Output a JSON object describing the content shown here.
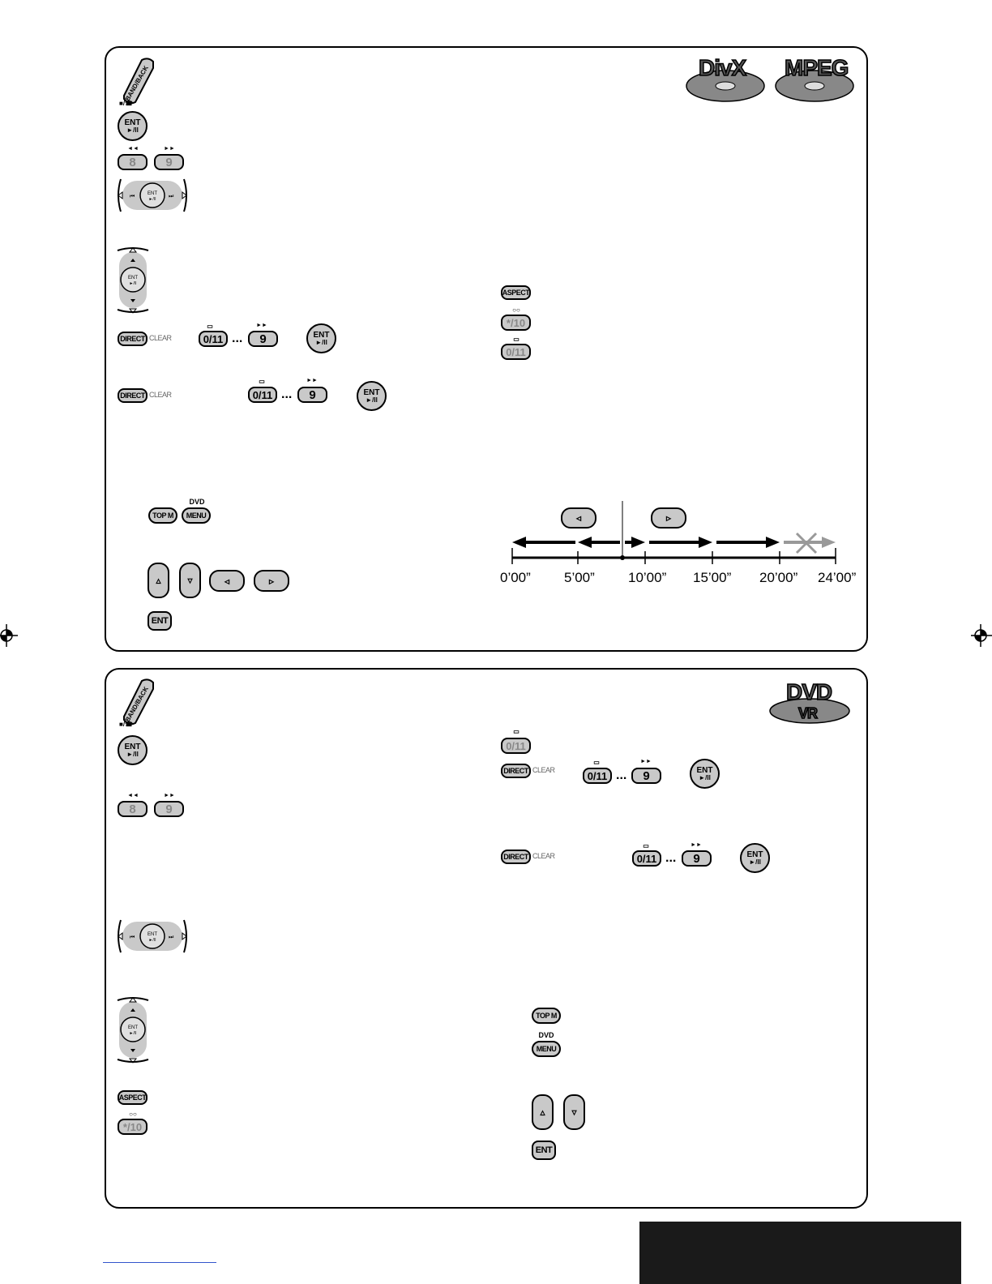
{
  "top_panel": {
    "badges": [
      "DivX",
      "MPEG"
    ],
    "band_back_label": "BAND/BACK",
    "stop_symbol": "■/",
    "ent_label": "ENT",
    "play_pause_symbol": "►/II",
    "key_8": "8",
    "key_9": "9",
    "key_0_11": "0/11",
    "key_star_10": "*/10",
    "rew_symbol": "◄◄",
    "ff_symbol": "►►",
    "direct_label": "DIRECT",
    "clear_label": "CLEAR",
    "ellipsis": "...",
    "aspect_label": "ASPECT",
    "topm_label": "TOP M",
    "dvd_label": "DVD",
    "menu_label": "MENU",
    "ent_key_label": "ENT",
    "timeline": {
      "ticks": [
        "0’00”",
        "5’00”",
        "10’00”",
        "15’00”",
        "20’00”",
        "24’00”"
      ]
    }
  },
  "bottom_panel": {
    "badge_main": "DVD",
    "badge_sub": "VR",
    "band_back_label": "BAND/BACK",
    "stop_symbol": "■/",
    "ent_label": "ENT",
    "play_pause_symbol": "►/II",
    "key_8": "8",
    "key_9": "9",
    "key_0_11": "0/11",
    "key_star_10": "*/10",
    "rew_symbol": "◄◄",
    "ff_symbol": "►►",
    "direct_label": "DIRECT",
    "clear_label": "CLEAR",
    "ellipsis": "...",
    "aspect_label": "ASPECT",
    "topm_label": "TOP M",
    "dvd_label": "DVD",
    "menu_label": "MENU",
    "ent_key_label": "ENT"
  }
}
